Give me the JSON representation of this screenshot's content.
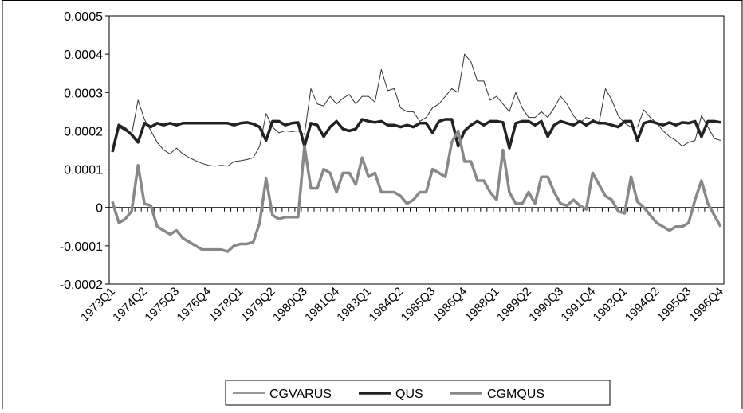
{
  "chart_data": {
    "type": "line",
    "categories": [
      "1973Q1",
      null,
      null,
      null,
      null,
      "1974Q2",
      null,
      null,
      null,
      null,
      "1975Q3",
      null,
      null,
      null,
      null,
      "1976Q4",
      null,
      null,
      null,
      null,
      "1978Q1",
      null,
      null,
      null,
      null,
      "1979Q2",
      null,
      null,
      null,
      null,
      "1980Q3",
      null,
      null,
      null,
      null,
      "1981Q4",
      null,
      null,
      null,
      null,
      "1983Q1",
      null,
      null,
      null,
      null,
      "1984Q2",
      null,
      null,
      null,
      null,
      "1985Q3",
      null,
      null,
      null,
      null,
      "1986Q4",
      null,
      null,
      null,
      null,
      "1988Q1",
      null,
      null,
      null,
      null,
      "1989Q2",
      null,
      null,
      null,
      null,
      "1990Q3",
      null,
      null,
      null,
      null,
      "1991Q4",
      null,
      null,
      null,
      null,
      "1993Q1",
      null,
      null,
      null,
      null,
      "1994Q2",
      null,
      null,
      null,
      null,
      "1995Q3",
      null,
      null,
      null,
      null,
      "1996Q4"
    ],
    "series": [
      {
        "name": "CGVARUS",
        "color": "#333333",
        "width": 1,
        "values": [
          0.00015,
          0.00021,
          0.0002,
          0.00019,
          0.00028,
          0.00023,
          0.0002,
          0.00017,
          0.00015,
          0.00014,
          0.000155,
          0.00014,
          0.00013,
          0.000122,
          0.000115,
          0.00011,
          0.000108,
          0.00011,
          0.000108,
          0.00012,
          0.000122,
          0.000125,
          0.00013,
          0.00016,
          0.000245,
          0.00021,
          0.000195,
          0.0002,
          0.000198,
          0.0002,
          0.00019,
          0.00031,
          0.00027,
          0.000265,
          0.00029,
          0.00027,
          0.000285,
          0.000295,
          0.00027,
          0.00029,
          0.00029,
          0.000275,
          0.00036,
          0.000305,
          0.00031,
          0.00026,
          0.00025,
          0.00025,
          0.000225,
          0.000235,
          0.00026,
          0.00027,
          0.00029,
          0.00031,
          0.0003,
          0.0004,
          0.00038,
          0.00033,
          0.00033,
          0.00028,
          0.00029,
          0.00027,
          0.00025,
          0.0003,
          0.00026,
          0.000235,
          0.000235,
          0.00025,
          0.000235,
          0.00026,
          0.00029,
          0.00027,
          0.00024,
          0.00022,
          0.000235,
          0.00023,
          0.00022,
          0.00031,
          0.00028,
          0.00024,
          0.00022,
          0.00021,
          0.00021,
          0.000255,
          0.000235,
          0.00022,
          0.0002,
          0.000185,
          0.000175,
          0.00016,
          0.00017,
          0.000175,
          0.00024,
          0.00021,
          0.00018,
          0.000175
        ]
      },
      {
        "name": "QUS",
        "color": "#222222",
        "width": 3.5,
        "values": [
          0.000145,
          0.000215,
          0.000205,
          0.00019,
          0.00017,
          0.00022,
          0.00021,
          0.00022,
          0.000215,
          0.00022,
          0.000215,
          0.00022,
          0.00022,
          0.00022,
          0.00022,
          0.00022,
          0.00022,
          0.00022,
          0.00022,
          0.000215,
          0.00022,
          0.000222,
          0.000218,
          0.00021,
          0.000175,
          0.000225,
          0.000225,
          0.000215,
          0.00022,
          0.000222,
          0.00016,
          0.00022,
          0.000215,
          0.000185,
          0.00021,
          0.000225,
          0.000205,
          0.0002,
          0.000205,
          0.00023,
          0.000225,
          0.000222,
          0.000225,
          0.000215,
          0.000215,
          0.00021,
          0.000215,
          0.00021,
          0.00022,
          0.00022,
          0.000195,
          0.000225,
          0.00023,
          0.00023,
          0.00016,
          0.0002,
          0.000215,
          0.000225,
          0.000215,
          0.000225,
          0.000225,
          0.000222,
          0.000155,
          0.00022,
          0.000225,
          0.000225,
          0.000215,
          0.000225,
          0.000185,
          0.000215,
          0.000225,
          0.00022,
          0.000215,
          0.000225,
          0.000215,
          0.000225,
          0.00022,
          0.00022,
          0.000215,
          0.00021,
          0.000225,
          0.000225,
          0.000175,
          0.00022,
          0.000225,
          0.00022,
          0.000215,
          0.000222,
          0.000215,
          0.000222,
          0.00022,
          0.000225,
          0.000185,
          0.000225,
          0.000225,
          0.000222
        ]
      },
      {
        "name": "CGMQUS",
        "color": "#888888",
        "width": 3.5,
        "values": [
          1.5e-05,
          -4e-05,
          -3e-05,
          -1e-05,
          0.00011,
          1e-05,
          5e-06,
          -5e-05,
          -6e-05,
          -7e-05,
          -6e-05,
          -8e-05,
          -9e-05,
          -0.0001,
          -0.00011,
          -0.00011,
          -0.00011,
          -0.00011,
          -0.000115,
          -0.0001,
          -9.5e-05,
          -9.5e-05,
          -9e-05,
          -4e-05,
          7.5e-05,
          -2e-05,
          -3e-05,
          -2.5e-05,
          -2.5e-05,
          -2.5e-05,
          0.00016,
          5e-05,
          5e-05,
          0.0001,
          9e-05,
          4e-05,
          9e-05,
          9e-05,
          6e-05,
          0.00013,
          8e-05,
          9e-05,
          4e-05,
          4e-05,
          4e-05,
          3e-05,
          1e-05,
          2e-05,
          4e-05,
          4e-05,
          0.0001,
          9e-05,
          8e-05,
          0.00017,
          0.0002,
          0.00012,
          0.00012,
          7e-05,
          7e-05,
          4e-05,
          2e-05,
          0.00015,
          4e-05,
          1e-05,
          1e-05,
          4e-05,
          1e-05,
          8e-05,
          8e-05,
          4e-05,
          1e-05,
          5e-06,
          2e-05,
          5e-06,
          -5e-06,
          9e-05,
          6e-05,
          3e-05,
          2e-05,
          -1e-05,
          -1.5e-05,
          8e-05,
          1.5e-05,
          0,
          -2e-05,
          -4e-05,
          -5e-05,
          -6e-05,
          -5e-05,
          -5e-05,
          -4e-05,
          2e-05,
          7e-05,
          1e-05,
          -2e-05,
          -5e-05
        ]
      }
    ],
    "ylim": [
      -0.0002,
      0.0005
    ],
    "yticks": [
      -0.0002,
      -0.0001,
      0,
      0.0001,
      0.0002,
      0.0003,
      0.0004,
      0.0005
    ],
    "legend": "bottom"
  }
}
